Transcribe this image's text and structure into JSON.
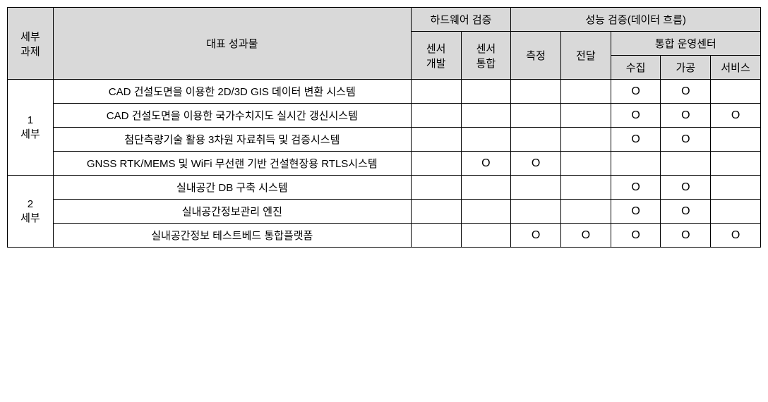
{
  "table": {
    "background_header": "#d9d9d9",
    "background_cell": "#ffffff",
    "border_color": "#000000",
    "mark_symbol": "O",
    "header": {
      "task": "세부\n과제",
      "deliverable": "대표 성과물",
      "hw_verification": "하드웨어 검증",
      "sensor_dev": "센서\n개발",
      "sensor_integration": "센서\n통합",
      "perf_verification": "성능 검증(데이터 흐름)",
      "measurement": "측정",
      "transmission": "전달",
      "ops_center": "통합 운영센터",
      "collection": "수집",
      "processing": "가공",
      "service": "서비스"
    },
    "groups": [
      {
        "label": "1\n세부",
        "rows": [
          {
            "deliverable": "CAD 건설도면을 이용한 2D/3D GIS 데이터 변환 시스템",
            "sensor_dev": "",
            "sensor_integration": "",
            "measurement": "",
            "transmission": "",
            "collection": "O",
            "processing": "O",
            "service": ""
          },
          {
            "deliverable": "CAD 건설도면을 이용한 국가수치지도 실시간 갱신시스템",
            "sensor_dev": "",
            "sensor_integration": "",
            "measurement": "",
            "transmission": "",
            "collection": "O",
            "processing": "O",
            "service": "O"
          },
          {
            "deliverable": "첨단측량기술 활용 3차원 자료취득 및 검증시스템",
            "sensor_dev": "",
            "sensor_integration": "",
            "measurement": "",
            "transmission": "",
            "collection": "O",
            "processing": "O",
            "service": ""
          },
          {
            "deliverable": "GNSS RTK/MEMS 및 WiFi 무선랜 기반 건설현장용 RTLS시스템",
            "sensor_dev": "",
            "sensor_integration": "O",
            "measurement": "O",
            "transmission": "",
            "collection": "",
            "processing": "",
            "service": ""
          }
        ]
      },
      {
        "label": "2\n세부",
        "rows": [
          {
            "deliverable": "실내공간 DB 구축 시스템",
            "sensor_dev": "",
            "sensor_integration": "",
            "measurement": "",
            "transmission": "",
            "collection": "O",
            "processing": "O",
            "service": ""
          },
          {
            "deliverable": "실내공간정보관리 엔진",
            "sensor_dev": "",
            "sensor_integration": "",
            "measurement": "",
            "transmission": "",
            "collection": "O",
            "processing": "O",
            "service": ""
          },
          {
            "deliverable": "실내공간정보 테스트베드 통합플랫폼",
            "sensor_dev": "",
            "sensor_integration": "",
            "measurement": "O",
            "transmission": "O",
            "collection": "O",
            "processing": "O",
            "service": "O"
          }
        ]
      }
    ]
  }
}
